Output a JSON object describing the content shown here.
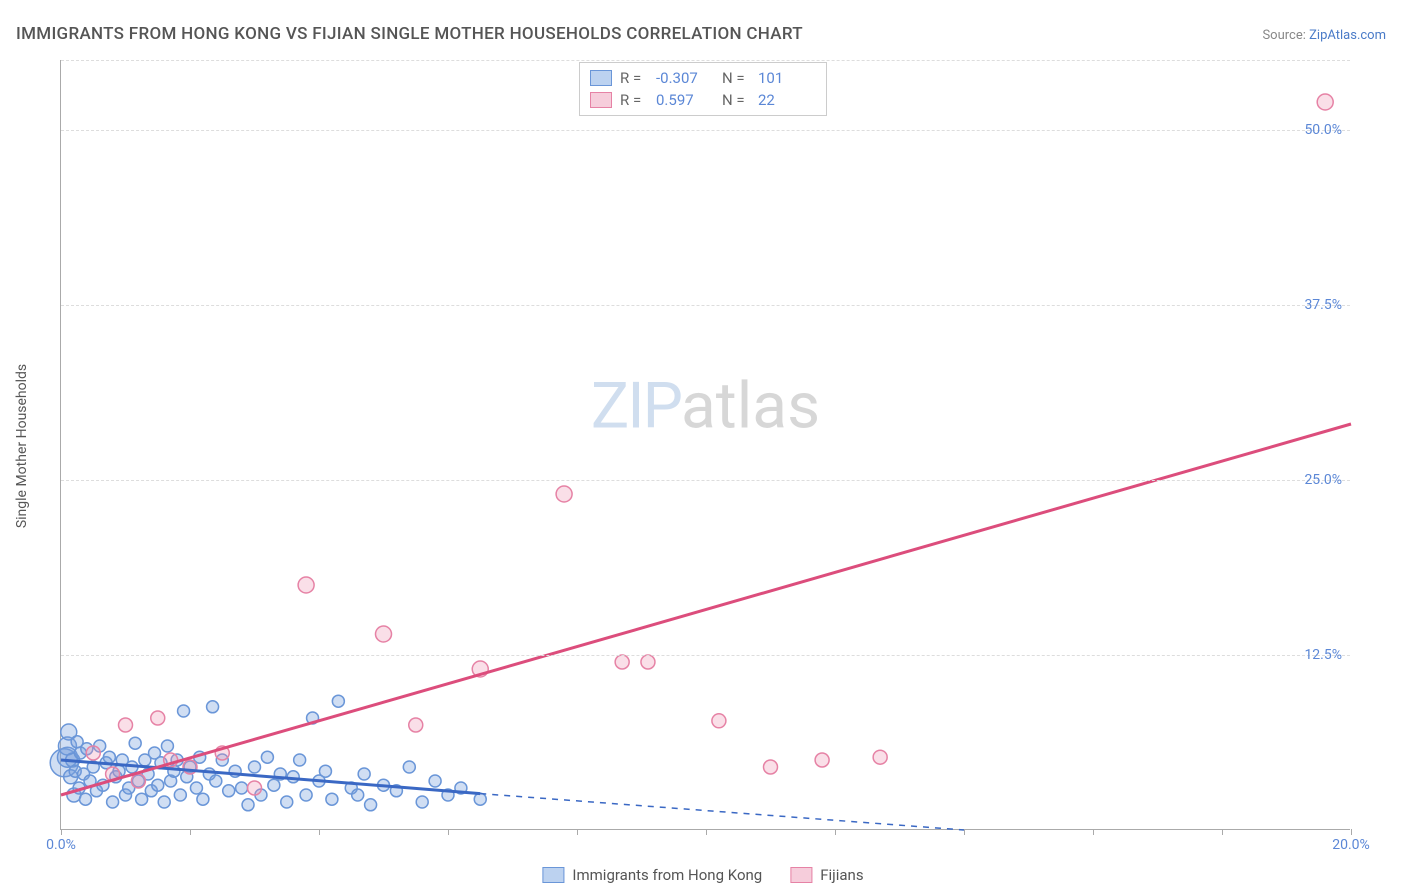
{
  "title": "IMMIGRANTS FROM HONG KONG VS FIJIAN SINGLE MOTHER HOUSEHOLDS CORRELATION CHART",
  "source_label": "Source:",
  "source_name": "ZipAtlas.com",
  "y_axis_label": "Single Mother Households",
  "watermark_a": "ZIP",
  "watermark_b": "atlas",
  "chart": {
    "type": "scatter",
    "xlim": [
      0,
      20
    ],
    "ylim": [
      0,
      55
    ],
    "x_ticks": [
      0,
      2,
      4,
      6,
      8,
      10,
      12,
      14,
      16,
      18,
      20
    ],
    "x_tick_labels": {
      "0": "0.0%",
      "20": "20.0%"
    },
    "y_ticks": [
      12.5,
      25.0,
      37.5,
      50.0
    ],
    "y_tick_labels": [
      "12.5%",
      "25.0%",
      "37.5%",
      "50.0%"
    ],
    "y_extra_gridline": 55,
    "background_color": "#ffffff",
    "grid_color": "#dddddd",
    "axis_color": "#aaaaaa",
    "tick_label_color": "#5b87d6",
    "series": [
      {
        "name": "Immigrants from Hong Kong",
        "fill": "rgba(120,160,220,0.35)",
        "stroke": "#6a96d8",
        "legend_fill": "#bcd2f0",
        "legend_stroke": "#6a96d8",
        "R": "-0.307",
        "N": "101",
        "trend": {
          "x1": 0,
          "y1": 5.0,
          "x2": 6.5,
          "y2": 2.6,
          "dash_x2": 14.0,
          "dash_y2": 0.0,
          "color": "#3a68c4",
          "width": 3
        },
        "points": [
          {
            "x": 0.05,
            "y": 4.8,
            "r": 14
          },
          {
            "x": 0.1,
            "y": 5.2,
            "r": 10
          },
          {
            "x": 0.1,
            "y": 6.0,
            "r": 9
          },
          {
            "x": 0.12,
            "y": 7.0,
            "r": 8
          },
          {
            "x": 0.15,
            "y": 3.8,
            "r": 7
          },
          {
            "x": 0.18,
            "y": 5.0,
            "r": 7
          },
          {
            "x": 0.2,
            "y": 2.5,
            "r": 7
          },
          {
            "x": 0.22,
            "y": 4.2,
            "r": 6
          },
          {
            "x": 0.25,
            "y": 6.3,
            "r": 6
          },
          {
            "x": 0.28,
            "y": 3.0,
            "r": 6
          },
          {
            "x": 0.3,
            "y": 5.5,
            "r": 6
          },
          {
            "x": 0.35,
            "y": 4.0,
            "r": 6
          },
          {
            "x": 0.38,
            "y": 2.2,
            "r": 6
          },
          {
            "x": 0.4,
            "y": 5.8,
            "r": 6
          },
          {
            "x": 0.45,
            "y": 3.5,
            "r": 6
          },
          {
            "x": 0.5,
            "y": 4.5,
            "r": 6
          },
          {
            "x": 0.55,
            "y": 2.8,
            "r": 6
          },
          {
            "x": 0.6,
            "y": 6.0,
            "r": 6
          },
          {
            "x": 0.65,
            "y": 3.2,
            "r": 6
          },
          {
            "x": 0.7,
            "y": 4.8,
            "r": 6
          },
          {
            "x": 0.75,
            "y": 5.2,
            "r": 6
          },
          {
            "x": 0.8,
            "y": 2.0,
            "r": 6
          },
          {
            "x": 0.85,
            "y": 3.8,
            "r": 6
          },
          {
            "x": 0.9,
            "y": 4.2,
            "r": 6
          },
          {
            "x": 0.95,
            "y": 5.0,
            "r": 6
          },
          {
            "x": 1.0,
            "y": 2.5,
            "r": 6
          },
          {
            "x": 1.05,
            "y": 3.0,
            "r": 6
          },
          {
            "x": 1.1,
            "y": 4.5,
            "r": 6
          },
          {
            "x": 1.15,
            "y": 6.2,
            "r": 6
          },
          {
            "x": 1.2,
            "y": 3.5,
            "r": 6
          },
          {
            "x": 1.25,
            "y": 2.2,
            "r": 6
          },
          {
            "x": 1.3,
            "y": 5.0,
            "r": 6
          },
          {
            "x": 1.35,
            "y": 4.0,
            "r": 6
          },
          {
            "x": 1.4,
            "y": 2.8,
            "r": 6
          },
          {
            "x": 1.45,
            "y": 5.5,
            "r": 6
          },
          {
            "x": 1.5,
            "y": 3.2,
            "r": 6
          },
          {
            "x": 1.55,
            "y": 4.8,
            "r": 6
          },
          {
            "x": 1.6,
            "y": 2.0,
            "r": 6
          },
          {
            "x": 1.65,
            "y": 6.0,
            "r": 6
          },
          {
            "x": 1.7,
            "y": 3.5,
            "r": 6
          },
          {
            "x": 1.75,
            "y": 4.2,
            "r": 6
          },
          {
            "x": 1.8,
            "y": 5.0,
            "r": 6
          },
          {
            "x": 1.85,
            "y": 2.5,
            "r": 6
          },
          {
            "x": 1.9,
            "y": 8.5,
            "r": 6
          },
          {
            "x": 1.95,
            "y": 3.8,
            "r": 6
          },
          {
            "x": 2.0,
            "y": 4.5,
            "r": 6
          },
          {
            "x": 2.1,
            "y": 3.0,
            "r": 6
          },
          {
            "x": 2.15,
            "y": 5.2,
            "r": 6
          },
          {
            "x": 2.2,
            "y": 2.2,
            "r": 6
          },
          {
            "x": 2.3,
            "y": 4.0,
            "r": 6
          },
          {
            "x": 2.35,
            "y": 8.8,
            "r": 6
          },
          {
            "x": 2.4,
            "y": 3.5,
            "r": 6
          },
          {
            "x": 2.5,
            "y": 5.0,
            "r": 6
          },
          {
            "x": 2.6,
            "y": 2.8,
            "r": 6
          },
          {
            "x": 2.7,
            "y": 4.2,
            "r": 6
          },
          {
            "x": 2.8,
            "y": 3.0,
            "r": 6
          },
          {
            "x": 2.9,
            "y": 1.8,
            "r": 6
          },
          {
            "x": 3.0,
            "y": 4.5,
            "r": 6
          },
          {
            "x": 3.1,
            "y": 2.5,
            "r": 6
          },
          {
            "x": 3.2,
            "y": 5.2,
            "r": 6
          },
          {
            "x": 3.3,
            "y": 3.2,
            "r": 6
          },
          {
            "x": 3.4,
            "y": 4.0,
            "r": 6
          },
          {
            "x": 3.5,
            "y": 2.0,
            "r": 6
          },
          {
            "x": 3.6,
            "y": 3.8,
            "r": 6
          },
          {
            "x": 3.7,
            "y": 5.0,
            "r": 6
          },
          {
            "x": 3.8,
            "y": 2.5,
            "r": 6
          },
          {
            "x": 3.9,
            "y": 8.0,
            "r": 6
          },
          {
            "x": 4.0,
            "y": 3.5,
            "r": 6
          },
          {
            "x": 4.1,
            "y": 4.2,
            "r": 6
          },
          {
            "x": 4.2,
            "y": 2.2,
            "r": 6
          },
          {
            "x": 4.3,
            "y": 9.2,
            "r": 6
          },
          {
            "x": 4.5,
            "y": 3.0,
            "r": 6
          },
          {
            "x": 4.6,
            "y": 2.5,
            "r": 6
          },
          {
            "x": 4.7,
            "y": 4.0,
            "r": 6
          },
          {
            "x": 4.8,
            "y": 1.8,
            "r": 6
          },
          {
            "x": 5.0,
            "y": 3.2,
            "r": 6
          },
          {
            "x": 5.2,
            "y": 2.8,
            "r": 6
          },
          {
            "x": 5.4,
            "y": 4.5,
            "r": 6
          },
          {
            "x": 5.6,
            "y": 2.0,
            "r": 6
          },
          {
            "x": 5.8,
            "y": 3.5,
            "r": 6
          },
          {
            "x": 6.0,
            "y": 2.5,
            "r": 6
          },
          {
            "x": 6.2,
            "y": 3.0,
            "r": 6
          },
          {
            "x": 6.5,
            "y": 2.2,
            "r": 6
          }
        ]
      },
      {
        "name": "Fijians",
        "fill": "rgba(240,150,180,0.30)",
        "stroke": "#e682a5",
        "legend_fill": "#f6cddb",
        "legend_stroke": "#e682a5",
        "R": "0.597",
        "N": "22",
        "trend": {
          "x1": 0,
          "y1": 2.5,
          "x2": 20,
          "y2": 29.0,
          "color": "#dc4d7c",
          "width": 3
        },
        "points": [
          {
            "x": 0.5,
            "y": 5.5,
            "r": 7
          },
          {
            "x": 0.8,
            "y": 4.0,
            "r": 7
          },
          {
            "x": 1.0,
            "y": 7.5,
            "r": 7
          },
          {
            "x": 1.2,
            "y": 3.5,
            "r": 7
          },
          {
            "x": 1.5,
            "y": 8.0,
            "r": 7
          },
          {
            "x": 1.7,
            "y": 5.0,
            "r": 7
          },
          {
            "x": 2.0,
            "y": 4.5,
            "r": 7
          },
          {
            "x": 2.5,
            "y": 5.5,
            "r": 7
          },
          {
            "x": 3.0,
            "y": 3.0,
            "r": 7
          },
          {
            "x": 3.8,
            "y": 17.5,
            "r": 8
          },
          {
            "x": 5.0,
            "y": 14.0,
            "r": 8
          },
          {
            "x": 5.5,
            "y": 7.5,
            "r": 7
          },
          {
            "x": 6.5,
            "y": 11.5,
            "r": 8
          },
          {
            "x": 7.8,
            "y": 24.0,
            "r": 8
          },
          {
            "x": 8.7,
            "y": 12.0,
            "r": 7
          },
          {
            "x": 9.1,
            "y": 12.0,
            "r": 7
          },
          {
            "x": 10.2,
            "y": 7.8,
            "r": 7
          },
          {
            "x": 11.0,
            "y": 4.5,
            "r": 7
          },
          {
            "x": 11.8,
            "y": 5.0,
            "r": 7
          },
          {
            "x": 12.7,
            "y": 5.2,
            "r": 7
          },
          {
            "x": 19.6,
            "y": 52.0,
            "r": 8
          }
        ]
      }
    ]
  },
  "legend_top_labels": {
    "R": "R =",
    "N": "N ="
  },
  "legend_bottom": [
    {
      "label": "Immigrants from Hong Kong",
      "series": 0
    },
    {
      "label": "Fijians",
      "series": 1
    }
  ]
}
